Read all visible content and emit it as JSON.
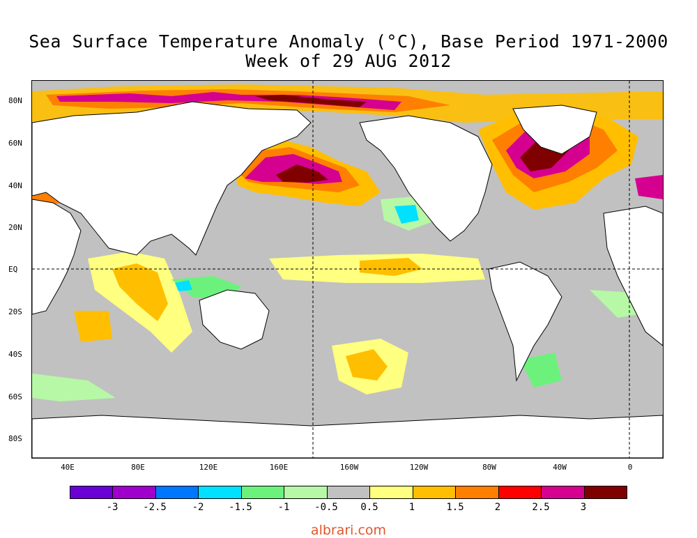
{
  "title": {
    "line1": "Sea Surface Temperature Anomaly (°C), Base Period 1971-2000",
    "line2": "Week of 29 AUG 2012"
  },
  "map": {
    "lat_labels": [
      "80N",
      "60N",
      "40N",
      "20N",
      "EQ",
      "20S",
      "40S",
      "60S",
      "80S"
    ],
    "lon_labels": [
      "40E",
      "80E",
      "120E",
      "160E",
      "160W",
      "120W",
      "80W",
      "40W",
      "0"
    ],
    "colors": {
      "ocean_neutral": "#c1c1c1",
      "land": "#ffffff",
      "coast": "#000000"
    }
  },
  "colorbar": {
    "colors": [
      "#6a00d5",
      "#a000cc",
      "#0077ff",
      "#00e0ff",
      "#6cf27c",
      "#b6f8a6",
      "#c1c1c1",
      "#ffff80",
      "#ffbf00",
      "#ff7f00",
      "#ff0000",
      "#d50090",
      "#800000"
    ],
    "labels": [
      "-3",
      "-2.5",
      "-2",
      "-1.5",
      "-1",
      "-0.5",
      "0.5",
      "1",
      "1.5",
      "2",
      "2.5",
      "3"
    ]
  },
  "watermark": "albrari.com"
}
